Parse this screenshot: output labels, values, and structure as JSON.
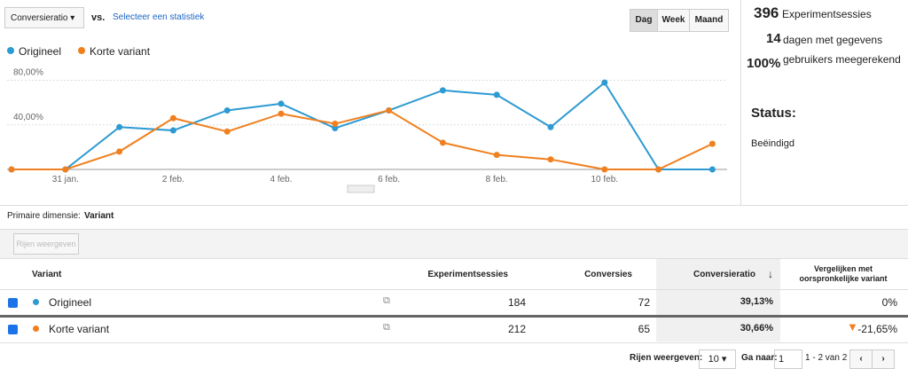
{
  "toolbar": {
    "metric": "Conversieratio",
    "vs": "vs.",
    "compare_link": "Selecteer een statistiek",
    "periods": [
      "Dag",
      "Week",
      "Maand"
    ]
  },
  "chart": {
    "type": "line",
    "categories": [
      null,
      "31 jan.",
      null,
      "2 feb.",
      null,
      "4 feb.",
      null,
      "6 feb.",
      null,
      "8 feb.",
      null,
      "10 feb.",
      null,
      null
    ],
    "series": [
      {
        "name": "Origineel",
        "color": "#2d9ad2",
        "values": [
          0,
          0,
          38,
          35,
          53,
          59,
          37,
          53,
          71,
          67,
          38,
          78,
          0,
          0
        ]
      },
      {
        "name": "Korte variant",
        "color": "#f0801f",
        "values": [
          0,
          0,
          16,
          46,
          34,
          50,
          41,
          53,
          24,
          13,
          9,
          0,
          0,
          23
        ]
      }
    ],
    "ylim": [
      0,
      90
    ],
    "yticks": [
      {
        "value": 40,
        "label": "40,00%"
      },
      {
        "value": 80,
        "label": "80,00%"
      }
    ],
    "grid": true
  },
  "stats": {
    "sessions_value": "396",
    "sessions_label": "Experimentsessies",
    "days_value": "14",
    "days_label": "dagen met gegevens",
    "users_value": "100%",
    "users_label": "gebruikers meegerekend",
    "status_label": "Status:",
    "status_value": "Beëindigd"
  },
  "dimension": {
    "label": "Primaire dimensie:",
    "value": "Variant",
    "button": "Rijen weergeven"
  },
  "table": {
    "headers": [
      "Variant",
      "Experimentsessies",
      "Conversies",
      "Conversieratio",
      "Vergelijken met oorspronkelijke variant"
    ],
    "rows": [
      [
        "Origineel",
        "184",
        "72",
        "39,13%",
        "0%"
      ],
      [
        "Korte variant",
        "212",
        "65",
        "30,66%",
        "-21,65%"
      ]
    ]
  },
  "footer": {
    "rows_label": "Rijen weergeven:",
    "rows_value": "10",
    "goto_label": "Ga naar:",
    "goto_value": "1",
    "range": "1 - 2 van 2"
  }
}
